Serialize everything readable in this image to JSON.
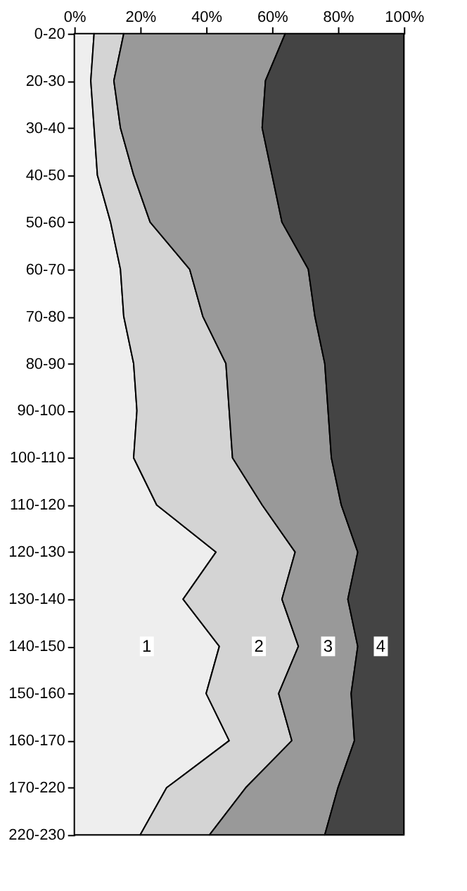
{
  "chart_data": {
    "type": "area",
    "orientation": "horizontal",
    "stacked": true,
    "legend": false,
    "grid": false,
    "categories": [
      "0-20",
      "20-30",
      "30-40",
      "40-50",
      "50-60",
      "60-70",
      "70-80",
      "80-90",
      "90-100",
      "100-110",
      "110-120",
      "120-130",
      "130-140",
      "140-150",
      "150-160",
      "160-170",
      "170-220",
      "220-230"
    ],
    "xlim": [
      0,
      100
    ],
    "xticks": [
      {
        "value": 0,
        "label": "0%"
      },
      {
        "value": 20,
        "label": "20%"
      },
      {
        "value": 40,
        "label": "40%"
      },
      {
        "value": 60,
        "label": "60%"
      },
      {
        "value": 80,
        "label": "80%"
      },
      {
        "value": 100,
        "label": "100%"
      }
    ],
    "series": [
      {
        "name": "1",
        "color": "#eeeeee",
        "values": [
          6,
          5,
          6,
          7,
          11,
          14,
          15,
          18,
          19,
          18,
          25,
          43,
          33,
          44,
          40,
          47,
          28,
          20
        ]
      },
      {
        "name": "2",
        "color": "#d4d4d4",
        "values": [
          9,
          7,
          8,
          11,
          12,
          21,
          24,
          28,
          28,
          30,
          32,
          24,
          30,
          24,
          22,
          19,
          24,
          21
        ]
      },
      {
        "name": "3",
        "color": "#999999",
        "values": [
          49,
          46,
          43,
          42,
          40,
          36,
          34,
          30,
          30,
          30,
          24,
          19,
          20,
          18,
          22,
          19,
          28,
          35
        ]
      },
      {
        "name": "4",
        "color": "#444444",
        "values": [
          36,
          42,
          43,
          40,
          37,
          29,
          27,
          24,
          23,
          22,
          19,
          14,
          17,
          14,
          16,
          15,
          20,
          24
        ]
      }
    ]
  }
}
